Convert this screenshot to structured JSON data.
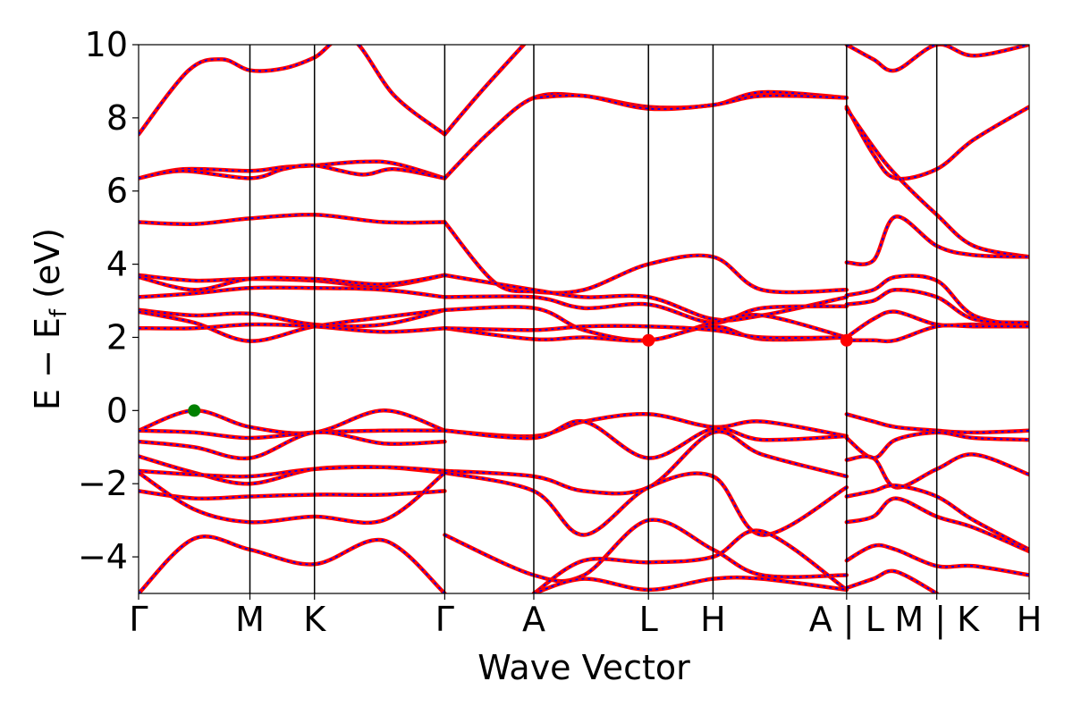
{
  "chart_data": {
    "type": "line",
    "title": "",
    "xlabel": "Wave Vector",
    "ylabel": "E − E",
    "ylabel_subscript": "f",
    "ylabel_unit": " (eV)",
    "ylim": [
      -5,
      10
    ],
    "yticks": [
      -4,
      -2,
      0,
      2,
      4,
      6,
      8,
      10
    ],
    "ytick_labels": [
      "−4",
      "−2",
      "0",
      "2",
      "4",
      "6",
      "8",
      "10"
    ],
    "xlim": [
      0,
      8.0
    ],
    "kpoints": [
      {
        "label": "Γ",
        "x": 0.0
      },
      {
        "label": "M",
        "x": 1.0
      },
      {
        "label": "K",
        "x": 1.58
      },
      {
        "label": "Γ",
        "x": 2.75
      },
      {
        "label": "A",
        "x": 3.55
      },
      {
        "label": "L",
        "x": 4.58
      },
      {
        "label": "H",
        "x": 5.16
      },
      {
        "label": "A | L",
        "x": 6.36
      },
      {
        "label": "M | K",
        "x": 7.17
      },
      {
        "label": "H",
        "x": 8.0
      }
    ],
    "grid": false,
    "legend": "none",
    "colors": {
      "band_main": "#ff0000",
      "band_dash": "#0000ff",
      "vbm": "#008000",
      "cbm": "#ff0000"
    },
    "markers": [
      {
        "name": "VBM",
        "x": 0.5,
        "y": 0.0,
        "color": "#008000"
      },
      {
        "name": "CBM",
        "x": 4.58,
        "y": 1.92,
        "color": "#ff0000"
      },
      {
        "name": "CBM",
        "x": 6.36,
        "y": 1.92,
        "color": "#ff0000"
      }
    ],
    "series": [
      {
        "x": [
          0,
          0.45,
          0.75,
          1.0,
          1.3,
          1.58,
          1.9,
          2.3,
          2.75
        ],
        "values": [
          7.55,
          9.3,
          9.6,
          9.3,
          9.35,
          9.65,
          10.2,
          8.6,
          7.55
        ]
      },
      {
        "x": [
          0,
          0.4,
          1.0,
          1.3,
          1.58,
          2.0,
          2.3,
          2.75
        ],
        "values": [
          6.35,
          6.6,
          6.55,
          6.65,
          6.7,
          6.8,
          6.75,
          6.35
        ]
      },
      {
        "x": [
          0,
          0.4,
          1.0,
          1.3,
          1.58,
          2.0,
          2.3,
          2.75
        ],
        "values": [
          6.35,
          6.55,
          6.35,
          6.6,
          6.7,
          6.45,
          6.6,
          6.35
        ]
      },
      {
        "x": [
          2.75,
          3.1,
          3.55
        ],
        "values": [
          7.55,
          8.8,
          10.3
        ]
      },
      {
        "x": [
          2.75,
          3.15,
          3.55,
          4.0,
          4.58,
          5.16,
          5.6,
          6.36
        ],
        "values": [
          6.35,
          7.6,
          8.55,
          8.6,
          8.3,
          8.35,
          8.7,
          8.55
        ]
      },
      {
        "x": [
          3.55,
          4.0,
          4.58,
          5.16,
          5.6,
          6.36
        ],
        "values": [
          8.55,
          8.6,
          8.25,
          8.35,
          8.6,
          8.55
        ]
      },
      {
        "x": [
          0,
          0.5,
          1.0,
          1.58,
          2.2,
          2.75
        ],
        "values": [
          5.15,
          5.1,
          5.25,
          5.35,
          5.15,
          5.15
        ]
      },
      {
        "x": [
          2.75,
          3.2,
          3.55,
          4.0,
          4.58,
          5.16,
          5.6,
          6.36
        ],
        "values": [
          5.15,
          3.5,
          3.25,
          3.3,
          4.0,
          4.2,
          3.3,
          3.3
        ]
      },
      {
        "x": [
          0,
          0.5,
          1.0,
          1.58,
          2.2,
          2.75
        ],
        "values": [
          3.7,
          3.55,
          3.6,
          3.55,
          3.4,
          3.7
        ]
      },
      {
        "x": [
          0,
          0.5,
          1.0,
          1.58,
          2.2,
          2.75
        ],
        "values": [
          3.65,
          3.3,
          3.6,
          3.6,
          3.45,
          3.7
        ]
      },
      {
        "x": [
          0,
          0.5,
          1.0,
          1.58,
          2.2,
          2.75
        ],
        "values": [
          3.1,
          3.2,
          3.35,
          3.35,
          3.3,
          3.1
        ]
      },
      {
        "x": [
          2.75,
          3.55,
          4.0,
          4.58,
          5.16,
          5.6,
          6.36
        ],
        "values": [
          3.7,
          3.3,
          3.1,
          3.1,
          2.5,
          2.6,
          3.1
        ]
      },
      {
        "x": [
          2.75,
          3.55,
          4.0,
          4.58,
          5.16,
          5.6,
          6.36
        ],
        "values": [
          3.1,
          3.1,
          2.8,
          2.9,
          2.4,
          2.8,
          2.85
        ]
      },
      {
        "x": [
          0,
          0.5,
          1.0,
          1.58,
          2.2,
          2.75
        ],
        "values": [
          2.75,
          2.6,
          2.65,
          2.35,
          2.35,
          2.75
        ]
      },
      {
        "x": [
          0,
          0.5,
          1.0,
          1.58,
          2.2,
          2.75
        ],
        "values": [
          2.7,
          2.4,
          1.9,
          2.3,
          2.55,
          2.75
        ]
      },
      {
        "x": [
          0,
          0.5,
          1.0,
          1.58,
          2.2,
          2.75
        ],
        "values": [
          2.25,
          2.25,
          2.35,
          2.3,
          2.15,
          2.25
        ]
      },
      {
        "x": [
          2.75,
          3.55,
          4.0,
          4.58,
          5.16,
          5.6,
          6.36
        ],
        "values": [
          2.75,
          2.8,
          2.2,
          1.92,
          2.4,
          2.6,
          2.0
        ]
      },
      {
        "x": [
          2.75,
          3.55,
          4.0,
          4.58,
          5.16,
          5.6,
          6.36
        ],
        "values": [
          2.25,
          1.95,
          2.0,
          1.92,
          2.3,
          1.95,
          2.0
        ]
      },
      {
        "x": [
          2.75,
          3.55,
          4.0,
          4.58,
          5.16,
          5.6,
          6.36
        ],
        "values": [
          2.25,
          2.2,
          2.3,
          2.3,
          2.2,
          2.0,
          2.0
        ]
      },
      {
        "x": [
          0,
          0.5,
          1.0,
          1.58,
          2.2,
          2.75
        ],
        "values": [
          -0.55,
          0.0,
          -0.45,
          -0.6,
          0.0,
          -0.55
        ]
      },
      {
        "x": [
          0,
          0.5,
          1.0,
          1.58,
          2.2,
          2.75
        ],
        "values": [
          -0.55,
          -0.6,
          -0.75,
          -0.6,
          -0.55,
          -0.55
        ]
      },
      {
        "x": [
          2.75,
          3.55,
          4.0,
          4.58,
          5.16,
          5.6,
          6.36
        ],
        "values": [
          -0.55,
          -0.7,
          -0.3,
          -0.1,
          -0.45,
          -0.3,
          -0.7
        ]
      },
      {
        "x": [
          2.75,
          3.55,
          4.0,
          4.58,
          5.16,
          5.6,
          6.36
        ],
        "values": [
          -0.55,
          -0.75,
          -0.3,
          -1.3,
          -0.5,
          -0.8,
          -0.7
        ]
      },
      {
        "x": [
          0,
          0.5,
          1.0,
          1.58,
          2.2,
          2.75
        ],
        "values": [
          -0.85,
          -1.0,
          -1.3,
          -0.6,
          -0.9,
          -0.85
        ]
      },
      {
        "x": [
          0,
          0.5,
          1.0,
          1.58,
          2.2,
          2.75
        ],
        "values": [
          -1.25,
          -1.7,
          -2.0,
          -1.6,
          -1.55,
          -1.7
        ]
      },
      {
        "x": [
          0,
          0.5,
          1.0,
          1.58,
          2.2,
          2.75
        ],
        "values": [
          -1.65,
          -1.75,
          -1.8,
          -1.6,
          -1.55,
          -1.65
        ]
      },
      {
        "x": [
          2.75,
          3.55,
          4.0,
          4.58,
          5.16,
          5.6,
          6.36
        ],
        "values": [
          -1.65,
          -1.8,
          -2.2,
          -2.1,
          -0.6,
          -1.2,
          -1.8
        ]
      },
      {
        "x": [
          0,
          0.5,
          1.0,
          1.58,
          2.2,
          2.75
        ],
        "values": [
          -2.2,
          -2.4,
          -2.35,
          -2.3,
          -2.3,
          -2.2
        ]
      },
      {
        "x": [
          0,
          0.5,
          1.0,
          1.58,
          2.2,
          2.75
        ],
        "values": [
          -1.7,
          -2.7,
          -3.05,
          -2.9,
          -3.0,
          -1.7
        ]
      },
      {
        "x": [
          2.75,
          3.55,
          4.0,
          4.58,
          5.16,
          5.6,
          6.36
        ],
        "values": [
          -1.7,
          -2.2,
          -3.4,
          -2.1,
          -1.8,
          -3.4,
          -2.1
        ]
      },
      {
        "x": [
          0,
          0.5,
          1.0,
          1.58,
          2.2,
          2.75
        ],
        "values": [
          -5.0,
          -3.5,
          -3.8,
          -4.2,
          -3.55,
          -5.0
        ]
      },
      {
        "x": [
          2.75,
          3.55,
          4.0,
          4.58,
          5.16,
          5.6,
          6.36
        ],
        "values": [
          -3.4,
          -4.5,
          -4.5,
          -3.0,
          -3.8,
          -4.5,
          -4.5
        ]
      },
      {
        "x": [
          3.55,
          4.0,
          4.58,
          5.16,
          5.6,
          6.36
        ],
        "values": [
          -5.0,
          -4.1,
          -4.15,
          -4.0,
          -3.3,
          -4.9
        ]
      },
      {
        "x": [
          3.55,
          4.0,
          4.58,
          5.16,
          5.6,
          6.36
        ],
        "values": [
          -5.0,
          -4.6,
          -4.9,
          -4.6,
          -4.6,
          -4.9
        ]
      },
      {
        "x": [
          6.36,
          6.6,
          6.8,
          7.17,
          7.5,
          8.0
        ],
        "values": [
          10.0,
          9.6,
          9.3,
          10.0,
          9.7,
          10.0
        ]
      },
      {
        "x": [
          6.36,
          6.6,
          6.8,
          7.17,
          7.5,
          8.0
        ],
        "values": [
          8.3,
          7.0,
          6.35,
          6.6,
          7.4,
          8.3
        ]
      },
      {
        "x": [
          6.36,
          6.6,
          6.8,
          7.17,
          7.5,
          8.0
        ],
        "values": [
          8.25,
          7.2,
          6.45,
          5.35,
          4.5,
          4.2
        ]
      },
      {
        "x": [
          6.36,
          6.6,
          6.8,
          7.17,
          7.5,
          8.0
        ],
        "values": [
          4.05,
          4.1,
          5.3,
          4.5,
          4.25,
          4.2
        ]
      },
      {
        "x": [
          6.36,
          6.6,
          6.8,
          7.17,
          7.5,
          8.0
        ],
        "values": [
          3.15,
          3.3,
          3.65,
          3.55,
          2.6,
          2.3
        ]
      },
      {
        "x": [
          6.36,
          6.6,
          6.8,
          7.17,
          7.5,
          8.0
        ],
        "values": [
          2.9,
          3.0,
          3.3,
          3.1,
          2.5,
          2.4
        ]
      },
      {
        "x": [
          6.36,
          6.6,
          6.8,
          7.17,
          7.5,
          8.0
        ],
        "values": [
          2.0,
          2.5,
          2.7,
          2.35,
          2.35,
          2.3
        ]
      },
      {
        "x": [
          6.36,
          6.6,
          6.8,
          7.17,
          7.5,
          8.0
        ],
        "values": [
          1.92,
          1.92,
          1.92,
          2.3,
          2.3,
          2.3
        ]
      },
      {
        "x": [
          6.36,
          6.6,
          6.8,
          7.17,
          7.5,
          8.0
        ],
        "values": [
          -0.1,
          -0.3,
          -0.45,
          -0.55,
          -0.6,
          -0.55
        ]
      },
      {
        "x": [
          6.36,
          6.6,
          6.8,
          7.17,
          7.5,
          8.0
        ],
        "values": [
          -0.75,
          -1.3,
          -0.8,
          -0.6,
          -0.75,
          -0.8
        ]
      },
      {
        "x": [
          6.36,
          6.6,
          6.8,
          7.17,
          7.5,
          8.0
        ],
        "values": [
          -1.35,
          -1.3,
          -2.1,
          -1.6,
          -1.2,
          -1.75
        ]
      },
      {
        "x": [
          6.36,
          6.6,
          6.8,
          7.17,
          7.5,
          8.0
        ],
        "values": [
          -2.35,
          -2.2,
          -2.05,
          -2.35,
          -3.0,
          -3.8
        ]
      },
      {
        "x": [
          6.36,
          6.6,
          6.8,
          7.17,
          7.5,
          8.0
        ],
        "values": [
          -3.05,
          -2.9,
          -2.4,
          -2.9,
          -3.2,
          -3.85
        ]
      },
      {
        "x": [
          6.36,
          6.6,
          6.8,
          7.17,
          7.5,
          8.0
        ],
        "values": [
          -4.1,
          -3.7,
          -3.8,
          -4.25,
          -4.25,
          -4.5
        ]
      },
      {
        "x": [
          6.36,
          6.6,
          6.8,
          7.17
        ],
        "values": [
          -4.85,
          -4.6,
          -4.4,
          -5.0
        ]
      }
    ]
  }
}
